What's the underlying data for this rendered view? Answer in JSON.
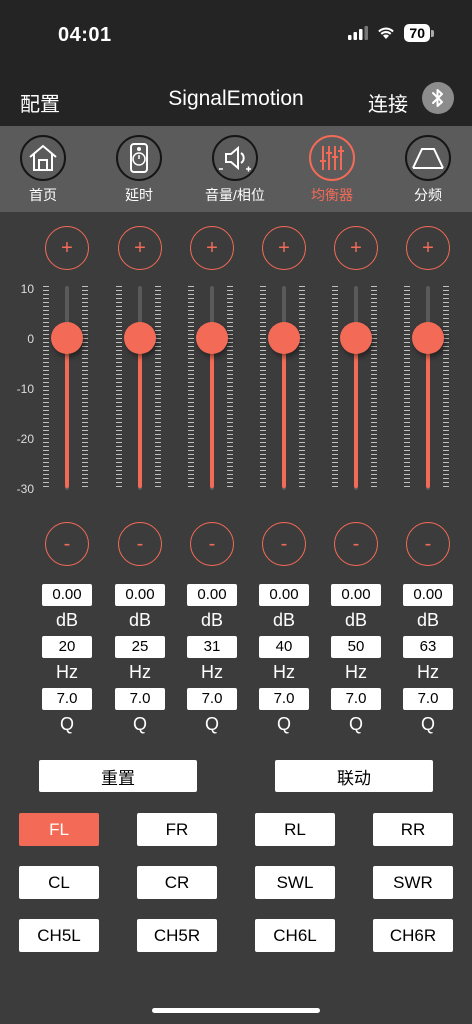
{
  "status": {
    "time": "04:01",
    "battery": "70"
  },
  "nav": {
    "left": "配置",
    "title": "SignalEmotion",
    "right": "连接"
  },
  "tabs": [
    {
      "label": "首页",
      "icon": "home-icon"
    },
    {
      "label": "延时",
      "icon": "speaker-timer-icon"
    },
    {
      "label": "音量/相位",
      "icon": "volume-phase-icon"
    },
    {
      "label": "均衡器",
      "icon": "equalizer-icon",
      "active": true
    },
    {
      "label": "分频",
      "icon": "crossover-icon"
    }
  ],
  "y_axis": [
    "10",
    "0",
    "-10",
    "-20",
    "-30"
  ],
  "plus": "+",
  "minus": "-",
  "bands": [
    {
      "db": "0.00",
      "db_unit": "dB",
      "hz": "20",
      "hz_unit": "Hz",
      "q": "7.0",
      "q_unit": "Q",
      "level": 0
    },
    {
      "db": "0.00",
      "db_unit": "dB",
      "hz": "25",
      "hz_unit": "Hz",
      "q": "7.0",
      "q_unit": "Q",
      "level": 0
    },
    {
      "db": "0.00",
      "db_unit": "dB",
      "hz": "31",
      "hz_unit": "Hz",
      "q": "7.0",
      "q_unit": "Q",
      "level": 0
    },
    {
      "db": "0.00",
      "db_unit": "dB",
      "hz": "40",
      "hz_unit": "Hz",
      "q": "7.0",
      "q_unit": "Q",
      "level": 0
    },
    {
      "db": "0.00",
      "db_unit": "dB",
      "hz": "50",
      "hz_unit": "Hz",
      "q": "7.0",
      "q_unit": "Q",
      "level": 0
    },
    {
      "db": "0.00",
      "db_unit": "dB",
      "hz": "63",
      "hz_unit": "Hz",
      "q": "7.0",
      "q_unit": "Q",
      "level": 0
    }
  ],
  "actions": {
    "reset": "重置",
    "link": "联动"
  },
  "channels": [
    "FL",
    "FR",
    "RL",
    "RR",
    "CL",
    "CR",
    "SWL",
    "SWR",
    "CH5L",
    "CH5R",
    "CH6L",
    "CH6R"
  ],
  "active_channel": "FL",
  "colors": {
    "accent": "#f36b56",
    "background": "#3c3c3d",
    "bar": "#242424",
    "tabbar": "#5b5b5c"
  }
}
